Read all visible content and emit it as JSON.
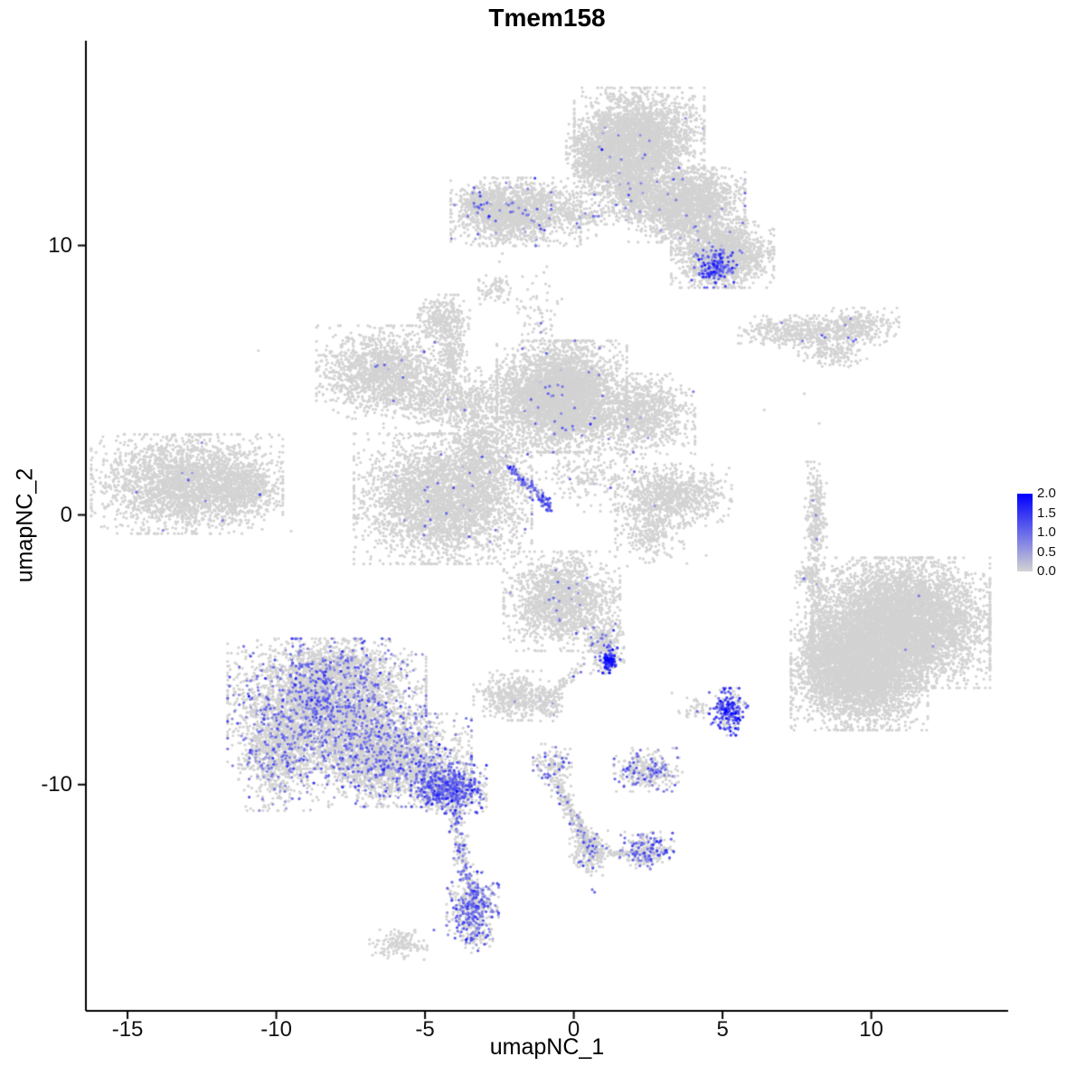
{
  "chart_data": {
    "type": "scatter",
    "title": "Tmem158",
    "xlabel": "umapNC_1",
    "ylabel": "umapNC_2",
    "xlim": [
      -16.4,
      14.6
    ],
    "ylim": [
      -18.4,
      17.6
    ],
    "xticks": [
      -15,
      -10,
      -5,
      0,
      5,
      10
    ],
    "yticks": [
      -10,
      0,
      10
    ],
    "grid": false,
    "point_radius": 1.6,
    "colors": {
      "low": "#d3d3d3",
      "high": "#0000ff",
      "axis": "#000000"
    },
    "legend": {
      "position": "right",
      "values": [
        2.0,
        1.5,
        1.0,
        0.5,
        0.0
      ],
      "vmin": 0,
      "vmax": 2
    },
    "clusters": [
      {
        "name": "top-main",
        "cx": 2.2,
        "cy": 13.9,
        "sx": 0.95,
        "sy": 0.85,
        "n": 2800,
        "f": 0.005,
        "m": 0.75
      },
      {
        "name": "top-main-west",
        "cx": 0.9,
        "cy": 13.3,
        "sx": 0.5,
        "sy": 0.6,
        "n": 700,
        "f": 0.012,
        "m": 0.7
      },
      {
        "name": "top-neck",
        "cx": 2.0,
        "cy": 12.1,
        "sx": 0.45,
        "sy": 0.5,
        "n": 500,
        "f": 0.012,
        "m": 0.7
      },
      {
        "name": "top-east-mid",
        "cx": 3.8,
        "cy": 11.5,
        "sx": 0.85,
        "sy": 0.6,
        "n": 2000,
        "f": 0.01,
        "m": 0.75
      },
      {
        "name": "top-east-low",
        "cx": 5.0,
        "cy": 9.7,
        "sx": 0.75,
        "sy": 0.55,
        "n": 1500,
        "f": 0.017,
        "m": 0.8
      },
      {
        "name": "top-east-hotspot",
        "cx": 4.72,
        "cy": 9.2,
        "sx": 0.33,
        "sy": 0.33,
        "n": 260,
        "f": 0.5,
        "m": 1.1,
        "s": 0.35
      },
      {
        "name": "top-west-sparse",
        "cx": 0.2,
        "cy": 10.9,
        "sx": 0.4,
        "sy": 0.5,
        "n": 60,
        "f": 0.05,
        "m": 0.7
      },
      {
        "name": "upper-left",
        "cx": -1.95,
        "cy": 11.25,
        "sx": 0.95,
        "sy": 0.55,
        "n": 1600,
        "f": 0.025,
        "m": 0.75
      },
      {
        "name": "upper-left-tip",
        "cx": -3.15,
        "cy": 11.55,
        "sx": 0.3,
        "sy": 0.3,
        "n": 220,
        "f": 0.055,
        "m": 0.85
      },
      {
        "name": "upper-bridge",
        "cx": 0.6,
        "cy": 11.2,
        "sx": 0.85,
        "sy": 0.3,
        "n": 130,
        "f": 0.03,
        "m": 0.7
      },
      {
        "name": "small-upper-mid",
        "cx": -2.66,
        "cy": 8.4,
        "sx": 0.3,
        "sy": 0.25,
        "n": 70,
        "f": 0.03,
        "m": 0.8
      },
      {
        "name": "knob",
        "cx": -4.37,
        "cy": 7.25,
        "sx": 0.38,
        "sy": 0.4,
        "n": 300,
        "f": 0.004,
        "m": 0.7
      },
      {
        "name": "knob-stem",
        "cx": -4.1,
        "cy": 5.9,
        "sx": 0.22,
        "sy": 0.6,
        "n": 160,
        "f": 0.006,
        "m": 0.7
      },
      {
        "name": "right-strip-west",
        "cx": 7.6,
        "cy": 6.8,
        "sx": 0.9,
        "sy": 0.26,
        "n": 450,
        "f": 0.016,
        "m": 0.75
      },
      {
        "name": "right-strip-east",
        "cx": 9.55,
        "cy": 7.0,
        "sx": 0.6,
        "sy": 0.3,
        "n": 280,
        "f": 0.007,
        "m": 0.8
      },
      {
        "name": "right-strip-tail",
        "cx": 8.7,
        "cy": 6.0,
        "sx": 0.5,
        "sy": 0.22,
        "n": 150,
        "f": 0.007,
        "m": 0.7
      },
      {
        "name": "mid-west",
        "cx": -6.35,
        "cy": 5.3,
        "sx": 1.0,
        "sy": 0.75,
        "n": 1500,
        "f": 0.005,
        "m": 0.75
      },
      {
        "name": "mid-bridge",
        "cx": -3.75,
        "cy": 4.2,
        "sx": 1.15,
        "sy": 0.55,
        "n": 650,
        "f": 0.005,
        "m": 0.7
      },
      {
        "name": "mid-core",
        "cx": -0.4,
        "cy": 4.4,
        "sx": 0.95,
        "sy": 0.9,
        "n": 4000,
        "f": 0.009,
        "m": 0.8
      },
      {
        "name": "mid-east",
        "cx": 2.35,
        "cy": 3.75,
        "sx": 0.75,
        "sy": 0.65,
        "n": 900,
        "f": 0.004,
        "m": 0.7
      },
      {
        "name": "mid-low",
        "cx": -4.4,
        "cy": 0.6,
        "sx": 1.3,
        "sy": 1.05,
        "n": 3200,
        "f": 0.009,
        "m": 0.8
      },
      {
        "name": "mid-neck",
        "cx": -3.0,
        "cy": 2.4,
        "sx": 0.5,
        "sy": 0.7,
        "n": 450,
        "f": 0.007,
        "m": 0.7
      },
      {
        "name": "mid-streak",
        "x1": -2.15,
        "y1": 1.75,
        "x2": -0.75,
        "y2": 0.25,
        "w": 0.09,
        "n": 130,
        "f": 0.7,
        "m": 0.95,
        "s": 0.3,
        "streak": true
      },
      {
        "name": "mid-sparse-se",
        "cx": 0.6,
        "cy": 1.5,
        "sx": 1.0,
        "sy": 0.6,
        "n": 220,
        "f": 0.014,
        "m": 0.7
      },
      {
        "name": "mid-sparse-n",
        "cx": -1.1,
        "cy": 7.4,
        "sx": 0.35,
        "sy": 0.8,
        "n": 70,
        "f": 0.03,
        "m": 0.7
      },
      {
        "name": "far-left",
        "cx": -13.0,
        "cy": 1.15,
        "sx": 1.4,
        "sy": 0.8,
        "n": 2600,
        "f": 0.004,
        "m": 0.7
      },
      {
        "name": "far-left-tip",
        "cx": -11.1,
        "cy": 0.85,
        "sx": 0.5,
        "sy": 0.45,
        "n": 350,
        "f": 0.006,
        "m": 0.7
      },
      {
        "name": "center-right",
        "cx": 3.35,
        "cy": 0.75,
        "sx": 0.85,
        "sy": 0.5,
        "n": 800,
        "f": 0.004,
        "m": 0.7
      },
      {
        "name": "center-right-tail",
        "cx": 2.55,
        "cy": -0.5,
        "sx": 0.5,
        "sy": 0.55,
        "n": 300,
        "f": 0.004,
        "m": 0.7
      },
      {
        "name": "thin-vertical",
        "cx": 8.13,
        "cy": -0.1,
        "sx": 0.16,
        "sy": 0.9,
        "n": 260,
        "f": 0.012,
        "m": 0.8
      },
      {
        "name": "thin-vertical-tail",
        "cx": 7.9,
        "cy": -2.3,
        "sx": 0.2,
        "sy": 0.3,
        "n": 70,
        "f": 0.01,
        "m": 0.7
      },
      {
        "name": "big-right-ne",
        "cx": 11.0,
        "cy": -4.0,
        "sx": 1.3,
        "sy": 1.05,
        "n": 6000,
        "f": 0.0002,
        "m": 0.8
      },
      {
        "name": "big-right-sw",
        "cx": 9.6,
        "cy": -5.8,
        "sx": 1.0,
        "sy": 0.95,
        "n": 4000,
        "f": 0.0002,
        "m": 0.8
      },
      {
        "name": "big-right-fringe",
        "cx": 8.15,
        "cy": -4.2,
        "sx": 0.28,
        "sy": 1.1,
        "n": 300,
        "f": 0.0,
        "m": 0.7
      },
      {
        "name": "center-low",
        "cx": -0.4,
        "cy": -3.2,
        "sx": 0.85,
        "sy": 0.8,
        "n": 1500,
        "f": 0.017,
        "m": 0.8
      },
      {
        "name": "center-low-tip",
        "cx": 1.0,
        "cy": -4.85,
        "sx": 0.3,
        "sy": 0.45,
        "n": 250,
        "f": 0.12,
        "m": 0.9
      },
      {
        "name": "center-low-hotspot",
        "cx": 1.17,
        "cy": -5.4,
        "sx": 0.11,
        "sy": 0.2,
        "n": 70,
        "f": 0.95,
        "m": 1.5,
        "s": 0.35
      },
      {
        "name": "small-left-of-center",
        "cx": -2.1,
        "cy": -6.7,
        "sx": 0.55,
        "sy": 0.4,
        "n": 420,
        "f": 0.003,
        "m": 0.7
      },
      {
        "name": "tiny-center",
        "cx": -0.9,
        "cy": -7.0,
        "sx": 0.22,
        "sy": 0.28,
        "n": 120,
        "f": 0.008,
        "m": 0.7
      },
      {
        "name": "center-link",
        "x1": 0.3,
        "y1": -5.5,
        "x2": -0.75,
        "y2": -6.8,
        "w": 0.1,
        "n": 55,
        "f": 0.04,
        "m": 0.7,
        "streak": true
      },
      {
        "name": "bottom-left-main",
        "cx": -8.3,
        "cy": -7.0,
        "sx": 1.45,
        "sy": 1.05,
        "n": 3800,
        "f": 0.18,
        "m": 0.8,
        "s": 0.3
      },
      {
        "name": "bottom-left-south",
        "cx": -6.2,
        "cy": -9.1,
        "sx": 1.2,
        "sy": 0.75,
        "n": 2200,
        "f": 0.18,
        "m": 0.8,
        "s": 0.3
      },
      {
        "name": "bottom-left-tip",
        "cx": -4.2,
        "cy": -10.15,
        "sx": 0.55,
        "sy": 0.4,
        "n": 800,
        "f": 0.45,
        "m": 1.0,
        "s": 0.3
      },
      {
        "name": "bottom-left-west",
        "cx": -10.0,
        "cy": -8.9,
        "sx": 0.55,
        "sy": 0.9,
        "n": 800,
        "f": 0.15,
        "m": 0.8
      },
      {
        "name": "bottom-left-north",
        "cx": -7.9,
        "cy": -5.6,
        "sx": 1.0,
        "sy": 0.4,
        "n": 450,
        "f": 0.12,
        "m": 0.8
      },
      {
        "name": "tail-streak",
        "x1": -4.05,
        "y1": -10.8,
        "x2": -3.6,
        "y2": -13.6,
        "w": 0.13,
        "n": 160,
        "f": 0.3,
        "m": 0.8,
        "streak": true
      },
      {
        "name": "tail-blob",
        "cx": -3.4,
        "cy": -14.5,
        "sx": 0.38,
        "sy": 0.55,
        "n": 420,
        "f": 0.45,
        "m": 0.95,
        "s": 0.3
      },
      {
        "name": "tail-blob-end",
        "cx": -3.3,
        "cy": -15.6,
        "sx": 0.25,
        "sy": 0.28,
        "n": 80,
        "f": 0.25,
        "m": 0.8
      },
      {
        "name": "bottom-small-left",
        "cx": -5.9,
        "cy": -15.9,
        "sx": 0.42,
        "sy": 0.26,
        "n": 140,
        "f": 0.007,
        "m": 0.7
      },
      {
        "name": "bottom-center-top",
        "cx": -0.72,
        "cy": -9.3,
        "sx": 0.28,
        "sy": 0.35,
        "n": 150,
        "f": 0.3,
        "m": 0.85
      },
      {
        "name": "bottom-center-streak",
        "x1": -0.6,
        "y1": -9.9,
        "x2": 0.5,
        "y2": -12.3,
        "w": 0.12,
        "n": 220,
        "f": 0.1,
        "m": 0.8,
        "streak": true
      },
      {
        "name": "bottom-center-blob",
        "cx": 0.55,
        "cy": -12.5,
        "sx": 0.3,
        "sy": 0.38,
        "n": 220,
        "f": 0.15,
        "m": 0.8
      },
      {
        "name": "bottom-center-east",
        "cx": 2.45,
        "cy": -12.45,
        "sx": 0.4,
        "sy": 0.3,
        "n": 260,
        "f": 0.35,
        "m": 0.9
      },
      {
        "name": "bottom-center-link",
        "x1": 0.85,
        "y1": -12.6,
        "x2": 2.0,
        "y2": -12.5,
        "w": 0.08,
        "n": 50,
        "f": 0.1,
        "m": 0.8,
        "streak": true
      },
      {
        "name": "small-mid-bottom",
        "cx": 2.5,
        "cy": -9.45,
        "sx": 0.5,
        "sy": 0.35,
        "n": 320,
        "f": 0.25,
        "m": 0.85
      },
      {
        "name": "purple-knot",
        "cx": 5.2,
        "cy": -7.3,
        "sx": 0.28,
        "sy": 0.38,
        "n": 240,
        "f": 0.7,
        "m": 1.25,
        "s": 0.35
      },
      {
        "name": "purple-knot-neighbor",
        "cx": 4.1,
        "cy": -7.2,
        "sx": 0.25,
        "sy": 0.18,
        "n": 40,
        "f": 0.1,
        "m": 0.8
      }
    ],
    "singles": [
      {
        "x": -14.7,
        "y": 0.85,
        "v": 1.0
      },
      {
        "x": -11.8,
        "y": -0.2,
        "v": 0.8
      },
      {
        "x": 11.6,
        "y": -3.0,
        "v": 0.9
      },
      {
        "x": 11.15,
        "y": -5.0,
        "v": 0.7
      },
      {
        "x": -4.7,
        "y": -15.4,
        "v": 0.9
      },
      {
        "x": 0.62,
        "y": -13.9,
        "v": 0.9
      },
      {
        "x": 0.7,
        "y": -14.0,
        "v": 1.1
      },
      {
        "x": 9.4,
        "y": 6.45,
        "v": 0.9
      },
      {
        "x": -10.6,
        "y": 6.1,
        "v": 0
      },
      {
        "x": -9.5,
        "y": -0.6,
        "v": 0
      },
      {
        "x": -2.4,
        "y": -2.5,
        "v": 0
      },
      {
        "x": 1.8,
        "y": -1.9,
        "v": 0
      },
      {
        "x": 3.8,
        "y": -1.8,
        "v": 0
      },
      {
        "x": 4.45,
        "y": -1.5,
        "v": 0
      },
      {
        "x": 7.75,
        "y": 4.5,
        "v": 0
      },
      {
        "x": 8.25,
        "y": 3.4,
        "v": 0
      },
      {
        "x": 6.4,
        "y": 3.9,
        "v": 0
      },
      {
        "x": 3.3,
        "y": -6.6,
        "v": 0
      },
      {
        "x": -2.4,
        "y": 9.7,
        "v": 0
      },
      {
        "x": -2.5,
        "y": 9.4,
        "v": 0
      }
    ]
  }
}
